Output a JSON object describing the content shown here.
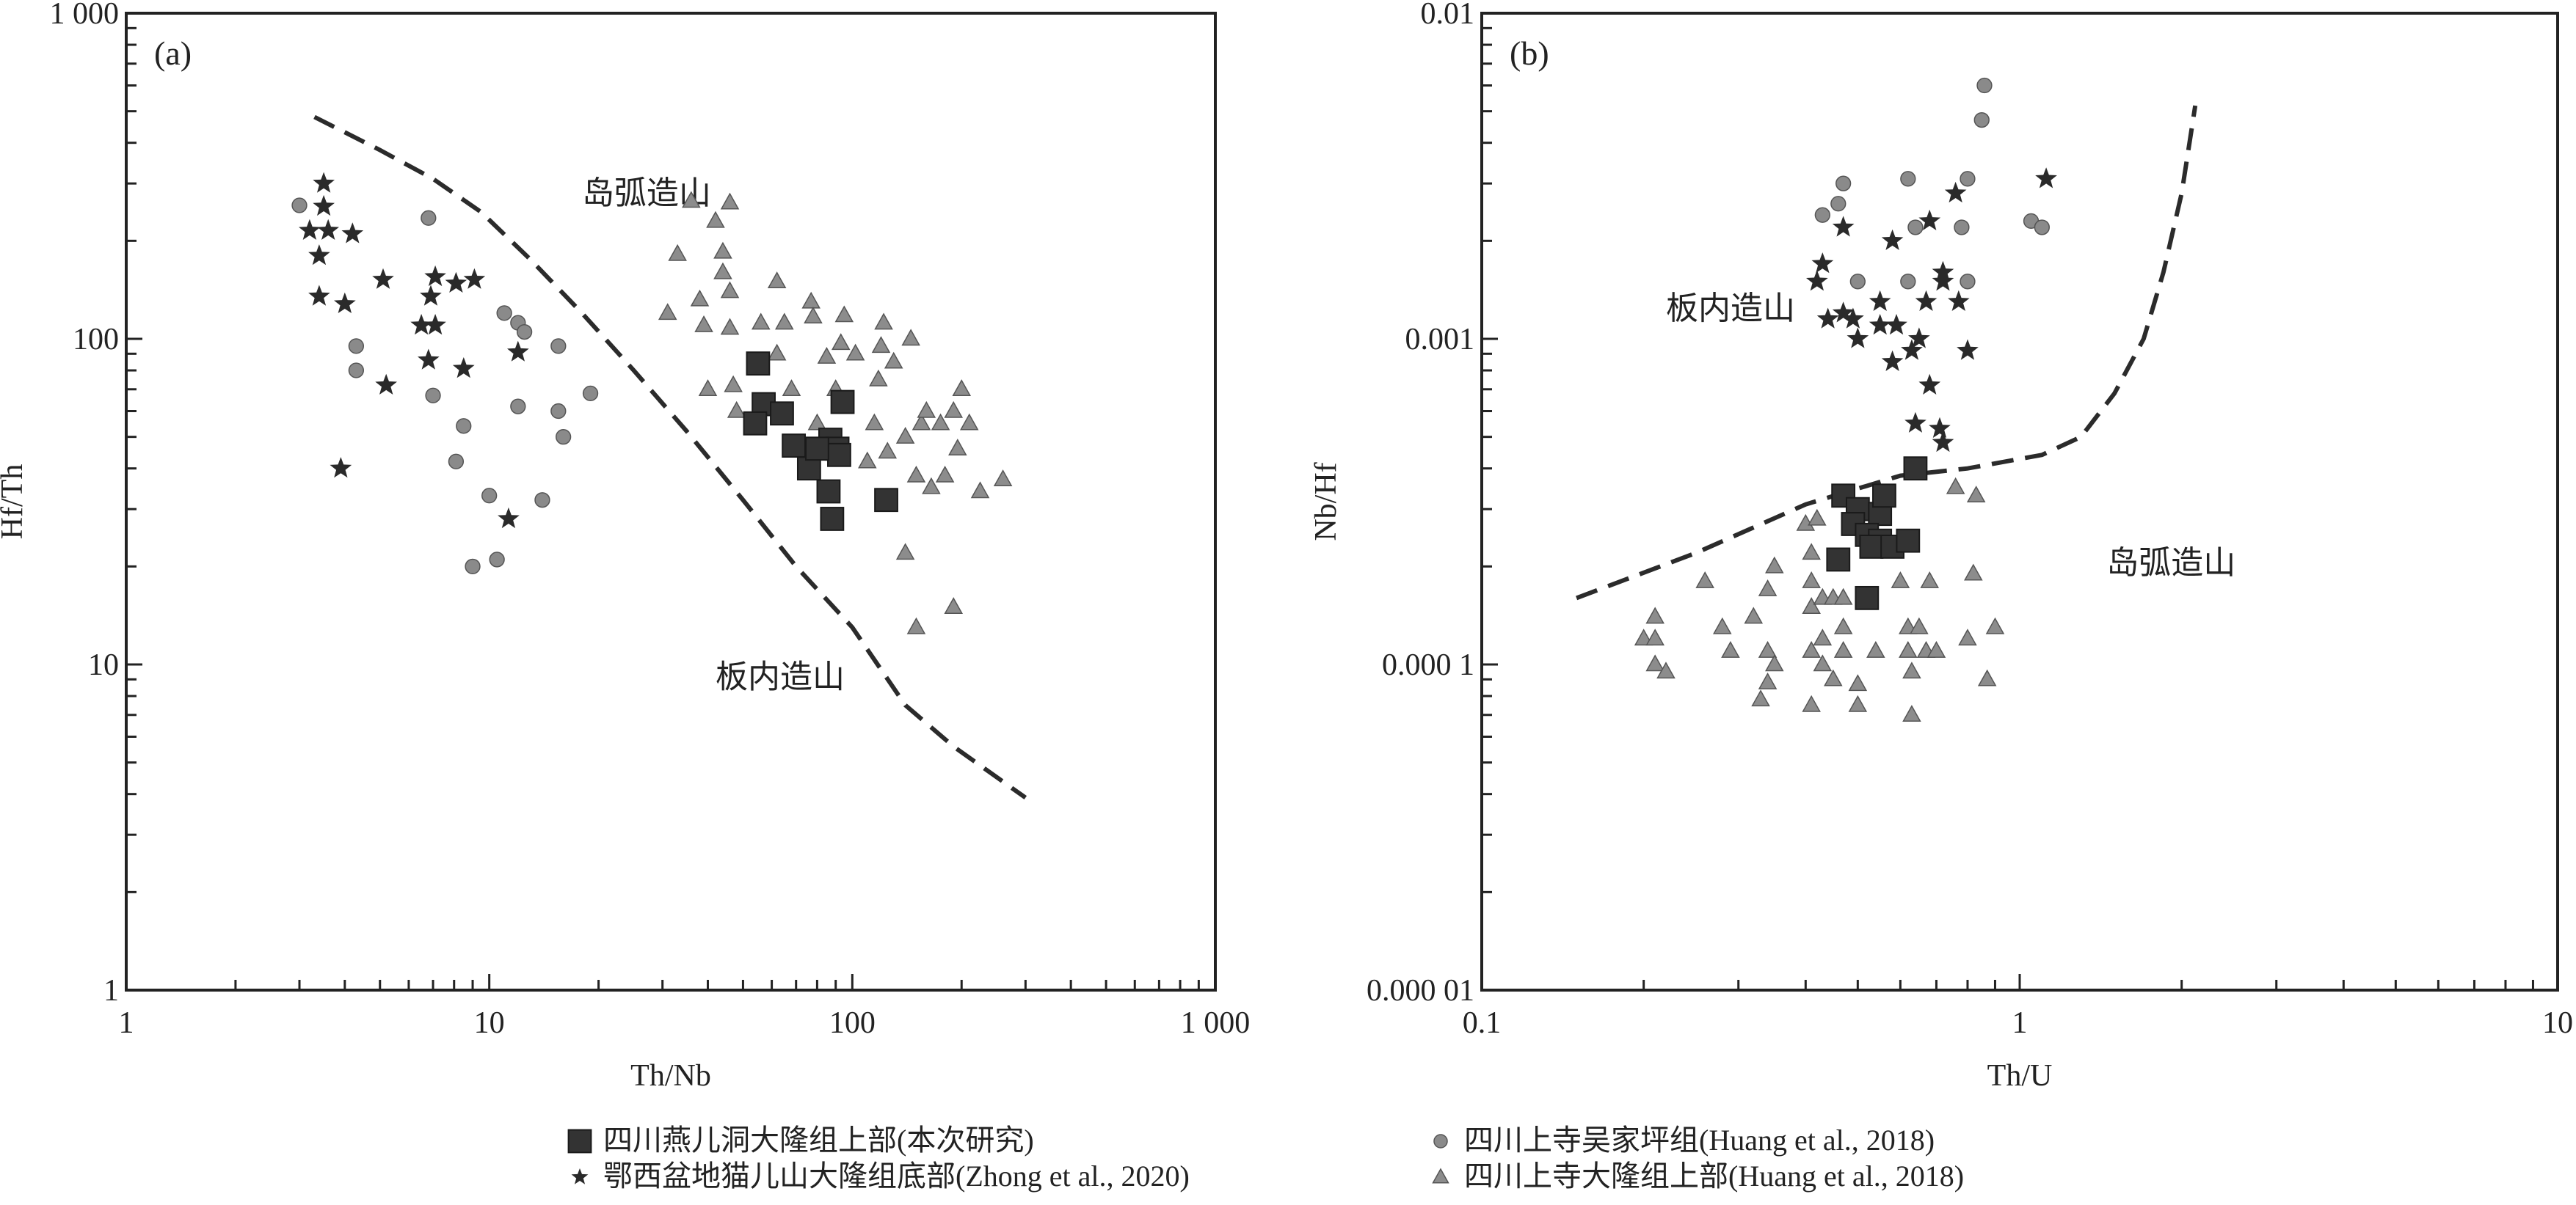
{
  "colors": {
    "square": "#333333",
    "circle": "#8a8a8a",
    "star": "#2a2a2a",
    "triangle": "#8c8c8c",
    "line": "#2b2b2b"
  },
  "legend": [
    {
      "marker": "square",
      "label": "四川燕儿洞大隆组上部(本次研究)"
    },
    {
      "marker": "circle",
      "label": "四川上寺吴家坪组(Huang et al., 2018)"
    },
    {
      "marker": "star",
      "label": "鄂西盆地猫儿山大隆组底部(Zhong et al., 2020)"
    },
    {
      "marker": "triangle",
      "label": "四川上寺大隆组上部(Huang et al., 2018)"
    }
  ],
  "chart_data": [
    {
      "type": "scatter",
      "panel_label": "(a)",
      "xlabel": "Th/Nb",
      "ylabel": "Hf/Th",
      "xscale": "log",
      "yscale": "log",
      "xlim": [
        1,
        1000
      ],
      "ylim": [
        1,
        1000
      ],
      "xticks": [
        {
          "v": 1,
          "label": "1"
        },
        {
          "v": 10,
          "label": "10"
        },
        {
          "v": 100,
          "label": "100"
        },
        {
          "v": 1000,
          "label": "1 000"
        }
      ],
      "yticks": [
        {
          "v": 1,
          "label": "1"
        },
        {
          "v": 10,
          "label": "10"
        },
        {
          "v": 100,
          "label": "100"
        },
        {
          "v": 1000,
          "label": "1 000"
        }
      ],
      "regions": [
        {
          "label": "岛弧造山",
          "x": 18,
          "y": 260
        },
        {
          "label": "板内造山",
          "x": 42,
          "y": 8.5
        }
      ],
      "boundary": [
        [
          3.3,
          480
        ],
        [
          5,
          380
        ],
        [
          7,
          310
        ],
        [
          9.5,
          245
        ],
        [
          13,
          175
        ],
        [
          18,
          120
        ],
        [
          25,
          80
        ],
        [
          35,
          52
        ],
        [
          50,
          32
        ],
        [
          70,
          20
        ],
        [
          100,
          13
        ],
        [
          140,
          7.5
        ],
        [
          190,
          5.6
        ],
        [
          300,
          3.9
        ]
      ],
      "series": [
        {
          "name": "四川燕儿洞大隆组上部(本次研究)",
          "marker": "square",
          "points": [
            [
              55,
              84
            ],
            [
              57,
              63
            ],
            [
              54,
              55
            ],
            [
              64,
              59
            ],
            [
              94,
              64
            ],
            [
              69,
              47
            ],
            [
              76,
              40
            ],
            [
              87,
              49
            ],
            [
              91,
              46
            ],
            [
              92,
              44
            ],
            [
              86,
              34
            ],
            [
              88,
              28
            ],
            [
              124,
              32
            ],
            [
              80,
              46
            ]
          ]
        },
        {
          "name": "四川上寺吴家坪组(Huang et al., 2018)",
          "marker": "circle",
          "points": [
            [
              3.0,
              257
            ],
            [
              6.8,
              235
            ],
            [
              4.3,
              95
            ],
            [
              4.3,
              80
            ],
            [
              7.0,
              67
            ],
            [
              8.1,
              42
            ],
            [
              8.5,
              54
            ],
            [
              9.0,
              20
            ],
            [
              10.0,
              33
            ],
            [
              10.5,
              21
            ],
            [
              11,
              120
            ],
            [
              12,
              112
            ],
            [
              12.5,
              105
            ],
            [
              12,
              62
            ],
            [
              15.5,
              95
            ],
            [
              15.5,
              60
            ],
            [
              16,
              50
            ],
            [
              14,
              32
            ],
            [
              19,
              68
            ]
          ]
        },
        {
          "name": "鄂西盆地猫儿山大隆组底部(Zhong et al., 2020)",
          "marker": "star",
          "points": [
            [
              3.2,
              215
            ],
            [
              3.5,
              300
            ],
            [
              3.5,
              255
            ],
            [
              3.6,
              215
            ],
            [
              3.4,
              180
            ],
            [
              3.4,
              135
            ],
            [
              4.2,
              210
            ],
            [
              4.0,
              128
            ],
            [
              5.1,
              152
            ],
            [
              5.2,
              72
            ],
            [
              3.9,
              40
            ],
            [
              6.5,
              110
            ],
            [
              6.9,
              135
            ],
            [
              7.1,
              155
            ],
            [
              7.1,
              110
            ],
            [
              8.1,
              148
            ],
            [
              9.1,
              152
            ],
            [
              6.8,
              86
            ],
            [
              8.5,
              81
            ],
            [
              12,
              91
            ],
            [
              11.3,
              28
            ]
          ]
        },
        {
          "name": "四川上寺大隆组上部(Huang et al., 2018)",
          "marker": "triangle",
          "points": [
            [
              31,
              120
            ],
            [
              33,
              182
            ],
            [
              36,
              265
            ],
            [
              42,
              230
            ],
            [
              38,
              132
            ],
            [
              39,
              110
            ],
            [
              40,
              70
            ],
            [
              44,
              160
            ],
            [
              44,
              185
            ],
            [
              46,
              140
            ],
            [
              46,
              108
            ],
            [
              46,
              262
            ],
            [
              47,
              72
            ],
            [
              48,
              60
            ],
            [
              56,
              112
            ],
            [
              62,
              150
            ],
            [
              65,
              112
            ],
            [
              62,
              90
            ],
            [
              68,
              70
            ],
            [
              77,
              130
            ],
            [
              78,
              117
            ],
            [
              80,
              55
            ],
            [
              85,
              88
            ],
            [
              90,
              70
            ],
            [
              93,
              97
            ],
            [
              95,
              118
            ],
            [
              102,
              90
            ],
            [
              110,
              42
            ],
            [
              115,
              55
            ],
            [
              118,
              75
            ],
            [
              120,
              95
            ],
            [
              122,
              112
            ],
            [
              125,
              45
            ],
            [
              130,
              85
            ],
            [
              140,
              50
            ],
            [
              140,
              22
            ],
            [
              145,
              100
            ],
            [
              150,
              38
            ],
            [
              155,
              55
            ],
            [
              160,
              60
            ],
            [
              165,
              35
            ],
            [
              175,
              55
            ],
            [
              180,
              38
            ],
            [
              190,
              60
            ],
            [
              195,
              46
            ],
            [
              200,
              70
            ],
            [
              210,
              55
            ],
            [
              225,
              34
            ],
            [
              260,
              37
            ],
            [
              150,
              13
            ],
            [
              190,
              15
            ]
          ]
        }
      ]
    },
    {
      "type": "scatter",
      "panel_label": "(b)",
      "xlabel": "Th/U",
      "ylabel": "Nb/Hf",
      "xscale": "log",
      "yscale": "log",
      "xlim": [
        0.1,
        10
      ],
      "ylim": [
        1e-05,
        0.01
      ],
      "xticks": [
        {
          "v": 0.1,
          "label": "0.1"
        },
        {
          "v": 1,
          "label": "1"
        },
        {
          "v": 10,
          "label": "10"
        }
      ],
      "yticks": [
        {
          "v": 1e-05,
          "label": "0.000 01"
        },
        {
          "v": 0.0001,
          "label": "0.000 1"
        },
        {
          "v": 0.001,
          "label": "0.001"
        },
        {
          "v": 0.01,
          "label": "0.01"
        }
      ],
      "regions": [
        {
          "label": "板内造山",
          "x": 0.22,
          "y": 0.00115
        },
        {
          "label": "岛弧造山",
          "x": 1.45,
          "y": 0.00019
        }
      ],
      "boundary": [
        [
          0.15,
          0.00016
        ],
        [
          0.25,
          0.00022
        ],
        [
          0.4,
          0.00031
        ],
        [
          0.6,
          0.00038
        ],
        [
          0.8,
          0.0004
        ],
        [
          1.1,
          0.00044
        ],
        [
          1.3,
          0.0005
        ],
        [
          1.5,
          0.00068
        ],
        [
          1.7,
          0.001
        ],
        [
          1.85,
          0.0016
        ],
        [
          2.0,
          0.0028
        ],
        [
          2.12,
          0.0052
        ]
      ],
      "series": [
        {
          "name": "四川燕儿洞大隆组上部(本次研究)",
          "marker": "square",
          "points": [
            [
              0.47,
              0.00033
            ],
            [
              0.5,
              0.0003
            ],
            [
              0.55,
              0.00029
            ],
            [
              0.56,
              0.00033
            ],
            [
              0.49,
              0.00027
            ],
            [
              0.52,
              0.00025
            ],
            [
              0.55,
              0.00024
            ],
            [
              0.53,
              0.00023
            ],
            [
              0.58,
              0.00023
            ],
            [
              0.62,
              0.00024
            ],
            [
              0.46,
              0.00021
            ],
            [
              0.64,
              0.0004
            ],
            [
              0.52,
              0.00016
            ]
          ]
        },
        {
          "name": "四川上寺吴家坪组(Huang et al., 2018)",
          "marker": "circle",
          "points": [
            [
              0.86,
              0.006
            ],
            [
              0.85,
              0.0047
            ],
            [
              0.47,
              0.003
            ],
            [
              0.62,
              0.0031
            ],
            [
              0.8,
              0.0031
            ],
            [
              0.46,
              0.0026
            ],
            [
              0.43,
              0.0024
            ],
            [
              0.64,
              0.0022
            ],
            [
              0.78,
              0.0022
            ],
            [
              1.05,
              0.0023
            ],
            [
              1.1,
              0.0022
            ],
            [
              0.5,
              0.0015
            ],
            [
              0.62,
              0.0015
            ],
            [
              0.8,
              0.0015
            ]
          ]
        },
        {
          "name": "鄂西盆地猫儿山大隆组底部(Zhong et al., 2020)",
          "marker": "star",
          "points": [
            [
              1.12,
              0.0031
            ],
            [
              0.76,
              0.0028
            ],
            [
              0.47,
              0.0022
            ],
            [
              0.68,
              0.0023
            ],
            [
              0.58,
              0.002
            ],
            [
              0.43,
              0.0017
            ],
            [
              0.42,
              0.0015
            ],
            [
              0.72,
              0.0016
            ],
            [
              0.72,
              0.0015
            ],
            [
              0.55,
              0.0013
            ],
            [
              0.67,
              0.0013
            ],
            [
              0.77,
              0.0013
            ],
            [
              0.47,
              0.0012
            ],
            [
              0.44,
              0.00115
            ],
            [
              0.49,
              0.00115
            ],
            [
              0.55,
              0.0011
            ],
            [
              0.59,
              0.0011
            ],
            [
              0.5,
              0.001
            ],
            [
              0.65,
              0.001
            ],
            [
              0.58,
              0.00085
            ],
            [
              0.63,
              0.00092
            ],
            [
              0.8,
              0.00092
            ],
            [
              0.68,
              0.00072
            ],
            [
              0.64,
              0.00055
            ],
            [
              0.71,
              0.00053
            ],
            [
              0.72,
              0.00048
            ]
          ]
        },
        {
          "name": "四川上寺大隆组上部(Huang et al., 2018)",
          "marker": "triangle",
          "points": [
            [
              0.2,
              0.00012
            ],
            [
              0.21,
              0.00014
            ],
            [
              0.21,
              0.00012
            ],
            [
              0.21,
              0.0001
            ],
            [
              0.22,
              9.5e-05
            ],
            [
              0.26,
              0.00018
            ],
            [
              0.28,
              0.00013
            ],
            [
              0.29,
              0.00011
            ],
            [
              0.32,
              0.00014
            ],
            [
              0.33,
              7.8e-05
            ],
            [
              0.34,
              0.00017
            ],
            [
              0.34,
              0.00011
            ],
            [
              0.35,
              0.0001
            ],
            [
              0.34,
              8.8e-05
            ],
            [
              0.35,
              0.0002
            ],
            [
              0.4,
              0.00027
            ],
            [
              0.42,
              0.00028
            ],
            [
              0.41,
              0.00022
            ],
            [
              0.41,
              0.00018
            ],
            [
              0.41,
              0.00015
            ],
            [
              0.41,
              0.00011
            ],
            [
              0.41,
              7.5e-05
            ],
            [
              0.43,
              0.00016
            ],
            [
              0.43,
              0.00012
            ],
            [
              0.43,
              0.0001
            ],
            [
              0.45,
              0.00016
            ],
            [
              0.45,
              9e-05
            ],
            [
              0.47,
              0.00013
            ],
            [
              0.47,
              0.00011
            ],
            [
              0.47,
              0.00016
            ],
            [
              0.5,
              8.7e-05
            ],
            [
              0.5,
              7.5e-05
            ],
            [
              0.54,
              0.00011
            ],
            [
              0.6,
              0.00018
            ],
            [
              0.62,
              0.00013
            ],
            [
              0.62,
              0.00011
            ],
            [
              0.63,
              9.5e-05
            ],
            [
              0.63,
              7e-05
            ],
            [
              0.65,
              0.00013
            ],
            [
              0.67,
              0.00011
            ],
            [
              0.68,
              0.00018
            ],
            [
              0.7,
              0.00011
            ],
            [
              0.76,
              0.00035
            ],
            [
              0.8,
              0.00012
            ],
            [
              0.82,
              0.00019
            ],
            [
              0.83,
              0.00033
            ],
            [
              0.87,
              9e-05
            ],
            [
              0.9,
              0.00013
            ]
          ]
        }
      ]
    }
  ]
}
